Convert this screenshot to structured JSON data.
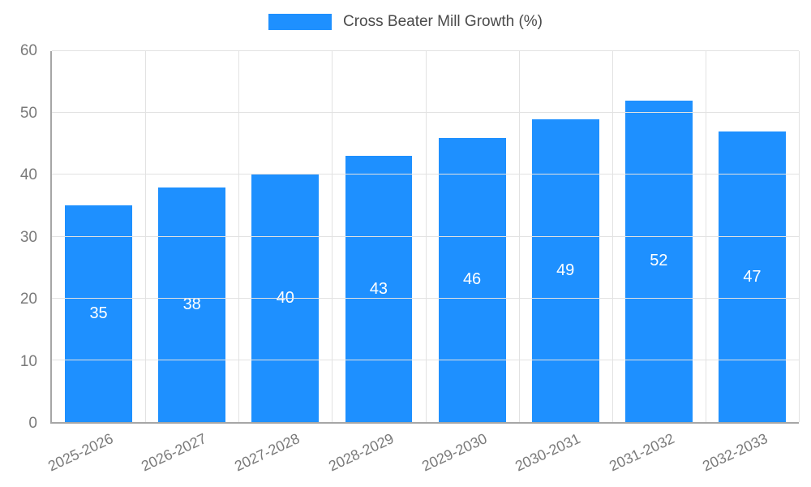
{
  "chart_data": {
    "type": "bar",
    "title": "Cross Beater Mill Growth (%)",
    "categories": [
      "2025-2026",
      "2026-2027",
      "2027-2028",
      "2028-2029",
      "2029-2030",
      "2030-2031",
      "2031-2032",
      "2032-2033"
    ],
    "values": [
      35,
      38,
      40,
      43,
      46,
      49,
      52,
      47
    ],
    "xlabel": "",
    "ylabel": "",
    "ylim": [
      0,
      60
    ],
    "y_ticks": [
      0,
      10,
      20,
      30,
      40,
      50,
      60
    ],
    "grid": true,
    "legend_position": "top",
    "colors": {
      "bar": "#1e90ff",
      "bar_value_label": "#ffffff",
      "tick_label": "#7a7a7a",
      "grid_line": "#e2e2e2",
      "axis_line": "#a6a6a6",
      "legend_text": "#4b4b4b"
    }
  }
}
